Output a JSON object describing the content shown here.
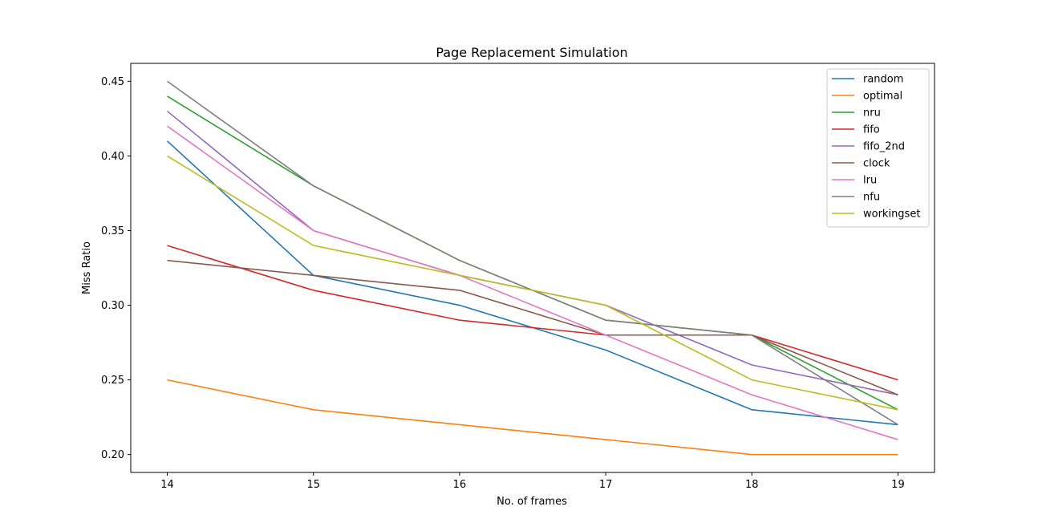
{
  "chart_data": {
    "type": "line",
    "title": "Page Replacement Simulation",
    "xlabel": "No. of frames",
    "ylabel": "Miss Ratio",
    "x": [
      14,
      15,
      16,
      17,
      18,
      19
    ],
    "x_ticks": [
      "14",
      "15",
      "16",
      "17",
      "18",
      "19"
    ],
    "y_ticks": [
      "0.20",
      "0.25",
      "0.30",
      "0.35",
      "0.40",
      "0.45"
    ],
    "xlim": [
      13.75,
      19.25
    ],
    "ylim": [
      0.188,
      0.462
    ],
    "grid": false,
    "legend_position": "top-right",
    "series": [
      {
        "name": "random",
        "color": "#1f77b4",
        "values": [
          0.41,
          0.32,
          0.3,
          0.27,
          0.23,
          0.22
        ]
      },
      {
        "name": "optimal",
        "color": "#ff7f0e",
        "values": [
          0.25,
          0.23,
          0.22,
          0.21,
          0.2,
          0.2
        ]
      },
      {
        "name": "nru",
        "color": "#2ca02c",
        "values": [
          0.44,
          0.38,
          0.33,
          0.29,
          0.28,
          0.23
        ]
      },
      {
        "name": "fifo",
        "color": "#d62728",
        "values": [
          0.34,
          0.31,
          0.29,
          0.28,
          0.28,
          0.25
        ]
      },
      {
        "name": "fifo_2nd",
        "color": "#9467bd",
        "values": [
          0.43,
          0.35,
          0.32,
          0.3,
          0.26,
          0.24
        ]
      },
      {
        "name": "clock",
        "color": "#8c564b",
        "values": [
          0.33,
          0.32,
          0.31,
          0.28,
          0.28,
          0.24
        ]
      },
      {
        "name": "lru",
        "color": "#e377c2",
        "values": [
          0.42,
          0.35,
          0.32,
          0.28,
          0.24,
          0.21
        ]
      },
      {
        "name": "nfu",
        "color": "#7f7f7f",
        "values": [
          0.45,
          0.38,
          0.33,
          0.29,
          0.28,
          0.22
        ]
      },
      {
        "name": "workingset",
        "color": "#bcbd22",
        "values": [
          0.4,
          0.34,
          0.32,
          0.3,
          0.25,
          0.23
        ]
      }
    ]
  }
}
